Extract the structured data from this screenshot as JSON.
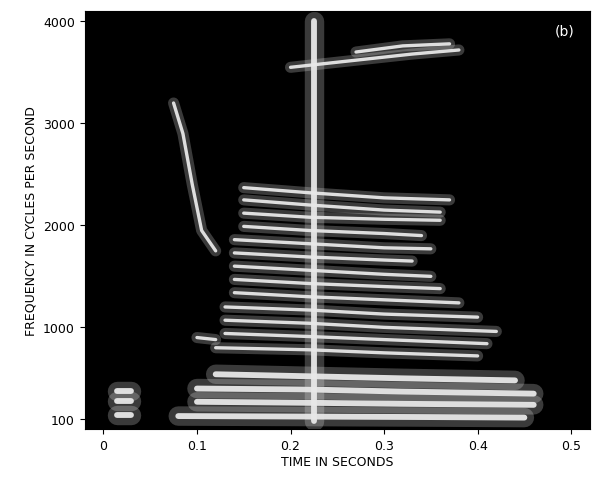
{
  "chart_data": {
    "type": "spectrogram",
    "title": "(b)",
    "x_label": "TIME IN SECONDS",
    "y_label": "FREQUENCY IN CYCLES PER SECOND",
    "xlim": [
      -0.02,
      0.52
    ],
    "ylim": [
      0,
      4100
    ],
    "xticks": [
      0,
      0.1,
      0.2,
      0.3,
      0.4,
      0.5
    ],
    "yticks": [
      100,
      1000,
      2000,
      3000,
      4000
    ],
    "color": "#e8e8e8",
    "series": [
      {
        "x": [
          0.15,
          0.22,
          0.3,
          0.37
        ],
        "values": [
          2370,
          2320,
          2270,
          2250
        ]
      },
      {
        "x": [
          0.15,
          0.22,
          0.3,
          0.36
        ],
        "values": [
          2250,
          2200,
          2150,
          2130
        ]
      },
      {
        "x": [
          0.15,
          0.22,
          0.3,
          0.36
        ],
        "values": [
          2120,
          2080,
          2060,
          2050
        ]
      },
      {
        "x": [
          0.15,
          0.22,
          0.3,
          0.34
        ],
        "values": [
          1990,
          1950,
          1920,
          1900
        ]
      },
      {
        "x": [
          0.14,
          0.22,
          0.3,
          0.35
        ],
        "values": [
          1860,
          1820,
          1780,
          1770
        ]
      },
      {
        "x": [
          0.14,
          0.22,
          0.3,
          0.33
        ],
        "values": [
          1730,
          1690,
          1660,
          1650
        ]
      },
      {
        "x": [
          0.14,
          0.22,
          0.3,
          0.35
        ],
        "values": [
          1600,
          1560,
          1520,
          1500
        ]
      },
      {
        "x": [
          0.14,
          0.22,
          0.3,
          0.36
        ],
        "values": [
          1470,
          1430,
          1400,
          1380
        ]
      },
      {
        "x": [
          0.14,
          0.22,
          0.3,
          0.38
        ],
        "values": [
          1340,
          1300,
          1270,
          1240
        ]
      },
      {
        "x": [
          0.13,
          0.22,
          0.3,
          0.4
        ],
        "values": [
          1200,
          1170,
          1130,
          1100
        ]
      },
      {
        "x": [
          0.13,
          0.22,
          0.3,
          0.42
        ],
        "values": [
          1070,
          1040,
          1000,
          960
        ]
      },
      {
        "x": [
          0.13,
          0.22,
          0.3,
          0.41
        ],
        "values": [
          940,
          910,
          880,
          840
        ]
      },
      {
        "x": [
          0.12,
          0.22,
          0.3,
          0.4
        ],
        "values": [
          800,
          780,
          750,
          720
        ]
      },
      {
        "x": [
          0.12,
          0.22,
          0.32,
          0.44
        ],
        "values": [
          540,
          520,
          500,
          480
        ]
      },
      {
        "x": [
          0.1,
          0.22,
          0.32,
          0.46
        ],
        "values": [
          400,
          390,
          370,
          350
        ]
      },
      {
        "x": [
          0.1,
          0.22,
          0.32,
          0.46
        ],
        "values": [
          270,
          260,
          250,
          240
        ]
      },
      {
        "x": [
          0.08,
          0.22,
          0.35,
          0.45
        ],
        "values": [
          130,
          125,
          120,
          115
        ]
      },
      {
        "x": [
          0.2,
          0.27,
          0.33,
          0.38
        ],
        "values": [
          3550,
          3620,
          3680,
          3720
        ]
      },
      {
        "x": [
          0.27,
          0.32,
          0.37
        ],
        "values": [
          3700,
          3760,
          3780
        ]
      },
      {
        "x": [
          0.075,
          0.085,
          0.095,
          0.105,
          0.12
        ],
        "values": [
          3200,
          2900,
          2400,
          1950,
          1750
        ]
      },
      {
        "x": [
          0.015,
          0.03
        ],
        "values": [
          140,
          140
        ]
      },
      {
        "x": [
          0.015,
          0.03
        ],
        "values": [
          280,
          280
        ]
      },
      {
        "x": [
          0.015,
          0.03
        ],
        "values": [
          380,
          380
        ]
      },
      {
        "x": [
          0.1,
          0.12
        ],
        "values": [
          900,
          880
        ]
      },
      {
        "x": [
          0.225,
          0.225
        ],
        "values": [
          80,
          4000
        ]
      }
    ]
  }
}
